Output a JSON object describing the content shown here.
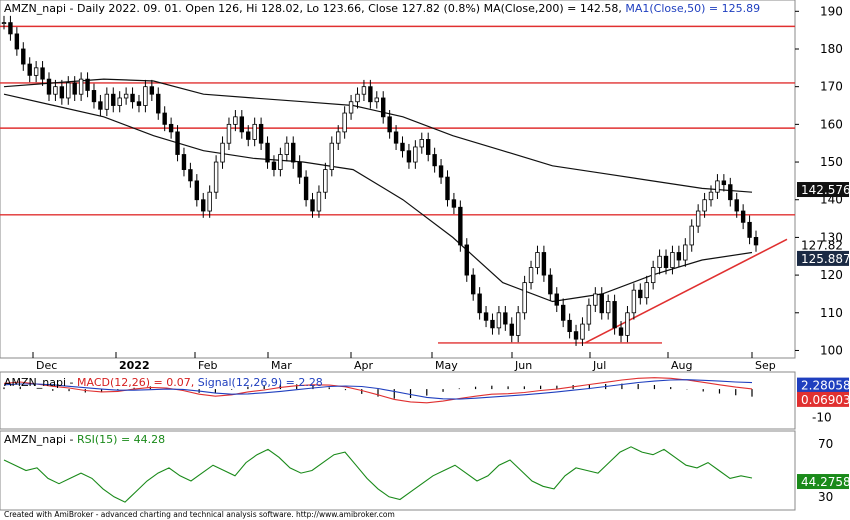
{
  "colors": {
    "price_line": "#000000",
    "resistance": "#e03030",
    "macd": "#e03030",
    "signal": "#1f3fbf",
    "rsi": "#1a8a1a",
    "ma200_badge": "#111111",
    "macd_badge": "#1f3fbf",
    "signal_badge": "#e03030"
  },
  "header": {
    "main_text": "AMZN_napi - Daily 2022. 09. 01. Open 126, Hi 128.02, Lo 123.66, Close 127.82 (0.8%) MA(Close,200) = 142.58,",
    "ma1_text": "MA1(Close,50) = 125.89"
  },
  "macd_header": {
    "prefix": "AMZN_napi - ",
    "macd_text": "MACD(12,26) = 0.07,",
    "signal_text": "Signal(12,26,9) = 2.28"
  },
  "rsi_header": {
    "prefix": "AMZN_napi - ",
    "rsi_text": "RSI(15) = 44.28"
  },
  "footer": "Created with AmiBroker - advanced charting and technical analysis software. http://www.amibroker.com",
  "chart_data": [
    {
      "type": "candlestick",
      "title": "AMZN_napi - Daily",
      "x_labels": [
        "Dec",
        "2022",
        "Feb",
        "Mar",
        "Apr",
        "May",
        "Jun",
        "Jul",
        "Aug",
        "Sep"
      ],
      "y_ticks": [
        100,
        110,
        120,
        130,
        140,
        150,
        160,
        170,
        180,
        190
      ],
      "ylim": [
        98,
        193
      ],
      "last_values": {
        "close": 127.82,
        "ma200": 142.576,
        "ma50": 125.887
      },
      "value_labels": [
        "142.576",
        "127.82",
        "125.887"
      ],
      "horizontal_levels": [
        186,
        171,
        159,
        136
      ],
      "support_line": {
        "y": 102,
        "start": "May",
        "end": "Jul"
      },
      "trend_line": {
        "from": 102,
        "to": 129.5
      },
      "price_path": [
        [
          0,
          187
        ],
        [
          4,
          184
        ],
        [
          8,
          180
        ],
        [
          12,
          176
        ],
        [
          16,
          173
        ],
        [
          20,
          175
        ],
        [
          24,
          172
        ],
        [
          28,
          168
        ],
        [
          32,
          170
        ],
        [
          36,
          167
        ],
        [
          40,
          171
        ],
        [
          44,
          168
        ],
        [
          48,
          172
        ],
        [
          52,
          169
        ],
        [
          56,
          166
        ],
        [
          60,
          164
        ],
        [
          64,
          168
        ],
        [
          68,
          165
        ],
        [
          72,
          167
        ],
        [
          76,
          168
        ],
        [
          80,
          166
        ],
        [
          84,
          165
        ],
        [
          88,
          170
        ],
        [
          92,
          168
        ],
        [
          96,
          163
        ],
        [
          100,
          160
        ],
        [
          104,
          158
        ],
        [
          108,
          152
        ],
        [
          112,
          148
        ],
        [
          116,
          145
        ],
        [
          120,
          140
        ],
        [
          124,
          137
        ],
        [
          128,
          142
        ],
        [
          132,
          150
        ],
        [
          136,
          155
        ],
        [
          140,
          160
        ],
        [
          144,
          162
        ],
        [
          148,
          158
        ],
        [
          152,
          156
        ],
        [
          156,
          160
        ],
        [
          160,
          155
        ],
        [
          164,
          150
        ],
        [
          168,
          148
        ],
        [
          172,
          152
        ],
        [
          176,
          155
        ],
        [
          180,
          150
        ],
        [
          184,
          146
        ],
        [
          188,
          140
        ],
        [
          192,
          137
        ],
        [
          196,
          142
        ],
        [
          200,
          148
        ],
        [
          204,
          155
        ],
        [
          208,
          158
        ],
        [
          212,
          163
        ],
        [
          216,
          166
        ],
        [
          220,
          168
        ],
        [
          224,
          170
        ],
        [
          228,
          166
        ],
        [
          232,
          167
        ],
        [
          236,
          162
        ],
        [
          240,
          158
        ],
        [
          244,
          155
        ],
        [
          248,
          153
        ],
        [
          252,
          150
        ],
        [
          256,
          154
        ],
        [
          260,
          156
        ],
        [
          264,
          152
        ],
        [
          268,
          149
        ],
        [
          272,
          146
        ],
        [
          276,
          140
        ],
        [
          280,
          138
        ],
        [
          284,
          128
        ],
        [
          288,
          120
        ],
        [
          292,
          115
        ],
        [
          296,
          110
        ],
        [
          300,
          108
        ],
        [
          304,
          106
        ],
        [
          308,
          110
        ],
        [
          312,
          107
        ],
        [
          316,
          104
        ],
        [
          320,
          110
        ],
        [
          324,
          118
        ],
        [
          328,
          122
        ],
        [
          332,
          126
        ],
        [
          336,
          120
        ],
        [
          340,
          115
        ],
        [
          344,
          112
        ],
        [
          348,
          108
        ],
        [
          352,
          105
        ],
        [
          356,
          103
        ],
        [
          360,
          107
        ],
        [
          364,
          112
        ],
        [
          368,
          115
        ],
        [
          372,
          110
        ],
        [
          376,
          113
        ],
        [
          380,
          106
        ],
        [
          384,
          104
        ],
        [
          388,
          110
        ],
        [
          392,
          116
        ],
        [
          396,
          114
        ],
        [
          400,
          118
        ],
        [
          404,
          122
        ],
        [
          408,
          125
        ],
        [
          412,
          122
        ],
        [
          416,
          126
        ],
        [
          420,
          124
        ],
        [
          424,
          128
        ],
        [
          428,
          133
        ],
        [
          432,
          137
        ],
        [
          436,
          140
        ],
        [
          440,
          142
        ],
        [
          444,
          145
        ],
        [
          448,
          144
        ],
        [
          452,
          140
        ],
        [
          456,
          137
        ],
        [
          460,
          134
        ],
        [
          464,
          130
        ],
        [
          468,
          128
        ]
      ],
      "ma200_path": [
        [
          0,
          170
        ],
        [
          40,
          171
        ],
        [
          80,
          172
        ],
        [
          120,
          171.5
        ],
        [
          160,
          168
        ],
        [
          200,
          167
        ],
        [
          240,
          166
        ],
        [
          280,
          165
        ],
        [
          320,
          162
        ],
        [
          360,
          157
        ],
        [
          400,
          153
        ],
        [
          440,
          149
        ],
        [
          480,
          147
        ],
        [
          520,
          145
        ],
        [
          560,
          143
        ],
        [
          600,
          142
        ]
      ],
      "ma50_path": [
        [
          0,
          168
        ],
        [
          40,
          165
        ],
        [
          80,
          162
        ],
        [
          120,
          157
        ],
        [
          160,
          153
        ],
        [
          200,
          151
        ],
        [
          240,
          150
        ],
        [
          280,
          148
        ],
        [
          320,
          140
        ],
        [
          360,
          130
        ],
        [
          400,
          118
        ],
        [
          440,
          113
        ],
        [
          480,
          115
        ],
        [
          520,
          120
        ],
        [
          560,
          124
        ],
        [
          600,
          126
        ]
      ]
    },
    {
      "type": "line",
      "title": "MACD(12,26)",
      "y_ticks": [
        -10
      ],
      "ylim": [
        -14,
        6
      ],
      "series": [
        {
          "name": "MACD(12,26)",
          "last": 0.07
        },
        {
          "name": "Signal(12,26,9)",
          "last": 2.28
        }
      ],
      "value_labels": [
        "2.28058",
        "0.06903"
      ]
    },
    {
      "type": "line",
      "title": "RSI(15)",
      "y_ticks": [
        30,
        70
      ],
      "ylim": [
        20,
        80
      ],
      "series": [
        {
          "name": "RSI(15)",
          "last": 44.28
        }
      ],
      "value_labels": [
        "44.2758"
      ]
    }
  ]
}
